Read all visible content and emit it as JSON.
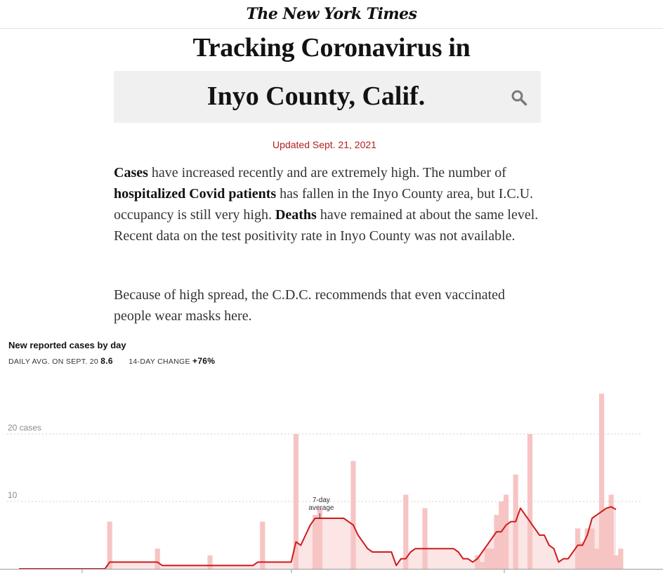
{
  "masthead": "The New York Times",
  "title": "Tracking Coronavirus in",
  "search": {
    "place": "Inyo County, Calif."
  },
  "updated": "Updated Sept. 21, 2021",
  "summary": {
    "p1": [
      {
        "text": "Cases",
        "bold": true
      },
      {
        "text": " have increased recently and are extremely high. The number of ",
        "bold": false
      },
      {
        "text": "hospitalized Covid patients",
        "bold": true
      },
      {
        "text": " has fallen in the Inyo County area, but I.C.U. occupancy is still very high. ",
        "bold": false
      },
      {
        "text": "Deaths",
        "bold": true
      },
      {
        "text": " have remained at about the same level. Recent data on the test positivity rate in Inyo County was not available.",
        "bold": false
      }
    ],
    "p2": "Because of high spread, the C.D.C. recommends that even vaccinated people wear masks here."
  },
  "chart_header": {
    "title": "New reported cases by day",
    "daily_avg_label": "DAILY AVG. ON SEPT. 20",
    "daily_avg_value": "8.6",
    "change_label": "14-DAY CHANGE",
    "change_value": "+76%"
  },
  "colors": {
    "bar": "#f7c4c4",
    "line": "#cf1b1b",
    "area": "#fbe5e5",
    "accent_red": "#b31d1d"
  },
  "chart_data": {
    "type": "bar",
    "overlay": "line (7-day average)",
    "title": "New reported cases by day",
    "ylim": [
      0,
      20
    ],
    "y_ticks": [
      {
        "value": 10,
        "label": "10"
      },
      {
        "value": 20,
        "label": "20 cases"
      }
    ],
    "grid": true,
    "annotation": {
      "lines": [
        "7-day",
        "average"
      ],
      "day": 63
    },
    "x": [
      0,
      1,
      2,
      3,
      4,
      5,
      6,
      7,
      8,
      9,
      10,
      11,
      12,
      13,
      14,
      15,
      16,
      17,
      18,
      19,
      20,
      21,
      22,
      23,
      24,
      25,
      26,
      27,
      28,
      29,
      30,
      31,
      32,
      33,
      34,
      35,
      36,
      37,
      38,
      39,
      40,
      41,
      42,
      43,
      44,
      45,
      46,
      47,
      48,
      49,
      50,
      51,
      52,
      53,
      54,
      55,
      56,
      57,
      58,
      59,
      60,
      61,
      62,
      63,
      64,
      65,
      66,
      67,
      68,
      69,
      70,
      71,
      72,
      73,
      74,
      75,
      76,
      77,
      78,
      79,
      80,
      81,
      82,
      83,
      84,
      85,
      86,
      87,
      88,
      89,
      90,
      91,
      92,
      93,
      94,
      95,
      96,
      97,
      98,
      99,
      100,
      101,
      102,
      103,
      104,
      105,
      106,
      107,
      108,
      109,
      110,
      111,
      112,
      113,
      114,
      115,
      116,
      117,
      118,
      119,
      120,
      121,
      122,
      123,
      124,
      125,
      126,
      127,
      128,
      129,
      130
    ],
    "cases": [
      0,
      0,
      0,
      0,
      0,
      0,
      0,
      0,
      0,
      0,
      0,
      0,
      0,
      0,
      0,
      0,
      0,
      0,
      0,
      7,
      0,
      0,
      0,
      0,
      0,
      0,
      0,
      0,
      0,
      3,
      0,
      0,
      0,
      0,
      0,
      0,
      0,
      0,
      0,
      0,
      2,
      0,
      0,
      0,
      0,
      0,
      0,
      0,
      0,
      0,
      0,
      7,
      0,
      0,
      0,
      0,
      0,
      0,
      20,
      0,
      0,
      0,
      8,
      9,
      0,
      0,
      0,
      0,
      0,
      0,
      16,
      0,
      0,
      0,
      0,
      0,
      0,
      0,
      0,
      0,
      0,
      11,
      0,
      0,
      0,
      9,
      0,
      0,
      0,
      0,
      0,
      0,
      0,
      0,
      0,
      0,
      2,
      1,
      3,
      3,
      8,
      10,
      11,
      0,
      14,
      0,
      0,
      20,
      0,
      0,
      0,
      0,
      0,
      0,
      0,
      0,
      0,
      6,
      4,
      6,
      6,
      3,
      26,
      9,
      11,
      2,
      3
    ],
    "avg_7day": [
      0,
      0,
      0,
      0,
      0,
      0,
      0,
      0,
      0,
      0,
      0,
      0,
      0,
      0,
      0,
      0,
      0,
      0,
      0,
      1,
      1,
      1,
      1,
      1,
      1,
      1,
      1,
      1,
      1,
      1,
      0.5,
      0.5,
      0.5,
      0.5,
      0.5,
      0.5,
      0.5,
      0.5,
      0.5,
      0.5,
      0.5,
      0.5,
      0.5,
      0.5,
      0.5,
      0.5,
      0.5,
      0.5,
      0.5,
      0.5,
      1,
      1,
      1,
      1,
      1,
      1,
      1,
      1,
      4,
      3.5,
      5,
      6.5,
      7.5,
      7.5,
      7.5,
      7.5,
      7.5,
      7.5,
      7.5,
      7,
      6.5,
      5,
      4,
      3,
      2.5,
      2.5,
      2.5,
      2.5,
      2.5,
      0.5,
      1.5,
      1.5,
      2.5,
      3,
      3,
      3,
      3,
      3,
      3,
      3,
      3,
      3,
      2.5,
      1.5,
      1.5,
      1,
      1.5,
      2.5,
      3.5,
      4.5,
      5.5,
      5.5,
      6.5,
      7,
      7,
      9,
      8,
      7,
      6,
      5,
      5,
      3.5,
      3,
      1,
      1.5,
      1.5,
      2.5,
      3.5,
      3.5,
      5,
      7.5,
      8,
      8.5,
      9,
      9.2,
      8.8
    ]
  }
}
